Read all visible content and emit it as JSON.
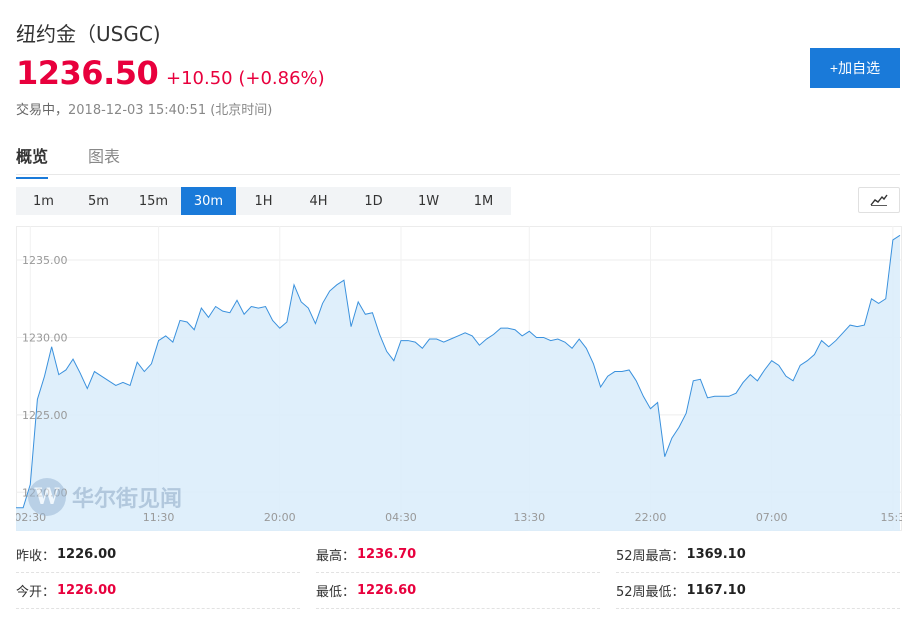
{
  "header": {
    "title": "纽约金（USGC)",
    "price": "1236.50",
    "change": "+10.50 (+0.86%)",
    "status_label": "交易中，",
    "timestamp": "2018-12-03 15:40:51 (北京时间)",
    "add_button": "+加自选"
  },
  "tabs": [
    {
      "label": "概览",
      "active": true
    },
    {
      "label": "图表",
      "active": false
    }
  ],
  "periods": [
    {
      "label": "1m",
      "active": false
    },
    {
      "label": "5m",
      "active": false
    },
    {
      "label": "15m",
      "active": false
    },
    {
      "label": "30m",
      "active": true
    },
    {
      "label": "1H",
      "active": false
    },
    {
      "label": "4H",
      "active": false
    },
    {
      "label": "1D",
      "active": false
    },
    {
      "label": "1W",
      "active": false
    },
    {
      "label": "1M",
      "active": false
    }
  ],
  "chart_type_icon": "line-chart-icon",
  "watermark": {
    "logo_letter": "W",
    "text": "华尔街见闻"
  },
  "chart_data": {
    "type": "area",
    "title": "",
    "xlabel": "",
    "ylabel": "",
    "ylim": [
      1217.5,
      1237.2
    ],
    "grid": true,
    "colors": {
      "line": "#3a91dd",
      "fill": "#dcedfb"
    },
    "y_ticks": [
      "1220.00",
      "1225.00",
      "1230.00",
      "1235.00"
    ],
    "x_ticks": [
      {
        "label": "02:30",
        "index": 2
      },
      {
        "label": "11:30",
        "index": 20
      },
      {
        "label": "20:00",
        "index": 37
      },
      {
        "label": "04:30",
        "index": 54
      },
      {
        "label": "13:30",
        "index": 72
      },
      {
        "label": "22:00",
        "index": 89
      },
      {
        "label": "07:00",
        "index": 106
      },
      {
        "label": "15:3",
        "index": 123
      }
    ],
    "values": [
      1219.0,
      1219.0,
      1220.5,
      1226.0,
      1227.5,
      1229.4,
      1227.6,
      1227.9,
      1228.6,
      1227.7,
      1226.7,
      1227.8,
      1227.5,
      1227.2,
      1226.9,
      1227.1,
      1226.9,
      1228.4,
      1227.8,
      1228.3,
      1229.8,
      1230.1,
      1229.7,
      1231.1,
      1231.0,
      1230.5,
      1231.9,
      1231.3,
      1232.0,
      1231.7,
      1231.6,
      1232.4,
      1231.5,
      1232.0,
      1231.9,
      1232.0,
      1231.1,
      1230.6,
      1231.0,
      1233.4,
      1232.3,
      1231.9,
      1230.9,
      1232.2,
      1233.0,
      1233.4,
      1233.7,
      1230.7,
      1232.3,
      1231.5,
      1231.6,
      1230.2,
      1229.1,
      1228.5,
      1229.8,
      1229.8,
      1229.7,
      1229.3,
      1229.9,
      1229.9,
      1229.7,
      1229.9,
      1230.1,
      1230.3,
      1230.1,
      1229.5,
      1229.9,
      1230.2,
      1230.6,
      1230.6,
      1230.5,
      1230.1,
      1230.4,
      1230.0,
      1230.0,
      1229.8,
      1229.9,
      1229.7,
      1229.3,
      1229.9,
      1229.3,
      1228.3,
      1226.8,
      1227.5,
      1227.8,
      1227.8,
      1227.9,
      1227.2,
      1226.2,
      1225.4,
      1225.8,
      1222.3,
      1223.5,
      1224.2,
      1225.1,
      1227.2,
      1227.3,
      1226.1,
      1226.2,
      1226.2,
      1226.2,
      1226.4,
      1227.1,
      1227.6,
      1227.2,
      1227.9,
      1228.5,
      1228.2,
      1227.5,
      1227.2,
      1228.2,
      1228.5,
      1228.9,
      1229.8,
      1229.4,
      1229.8,
      1230.3,
      1230.8,
      1230.7,
      1230.8,
      1232.5,
      1232.2,
      1232.5,
      1236.3,
      1236.6
    ]
  },
  "stats": [
    {
      "label": "昨收：",
      "value": "1226.00",
      "color": "#222222"
    },
    {
      "label": "最高：",
      "value": "1236.70",
      "color": "#e8003d"
    },
    {
      "label": "52周最高：",
      "value": "1369.10",
      "color": "#222222"
    },
    {
      "label": "今开：",
      "value": "1226.00",
      "color": "#e8003d"
    },
    {
      "label": "最低：",
      "value": "1226.60",
      "color": "#e8003d"
    },
    {
      "label": "52周最低：",
      "value": "1167.10",
      "color": "#222222"
    }
  ]
}
